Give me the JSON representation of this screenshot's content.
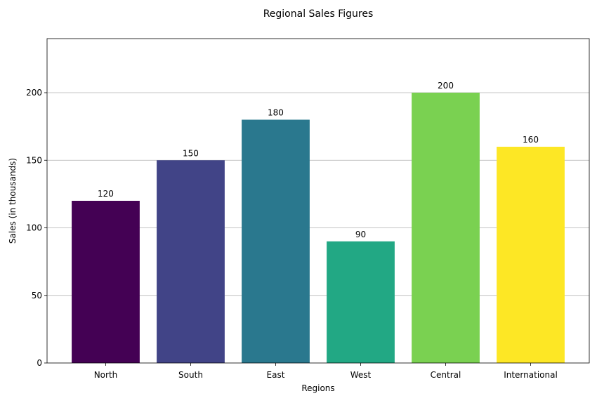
{
  "chart_data": {
    "type": "bar",
    "title": "Regional Sales Figures",
    "xlabel": "Regions",
    "ylabel": "Sales (in thousands)",
    "categories": [
      "North",
      "South",
      "East",
      "West",
      "Central",
      "International"
    ],
    "values": [
      120,
      150,
      180,
      90,
      200,
      160
    ],
    "colors": [
      "#440154",
      "#414487",
      "#2a788e",
      "#22a884",
      "#7ad151",
      "#fde725"
    ],
    "ylim": [
      0,
      240
    ],
    "yticks": [
      0,
      50,
      100,
      150,
      200
    ],
    "grid": "y-axis",
    "data_labels": true
  }
}
